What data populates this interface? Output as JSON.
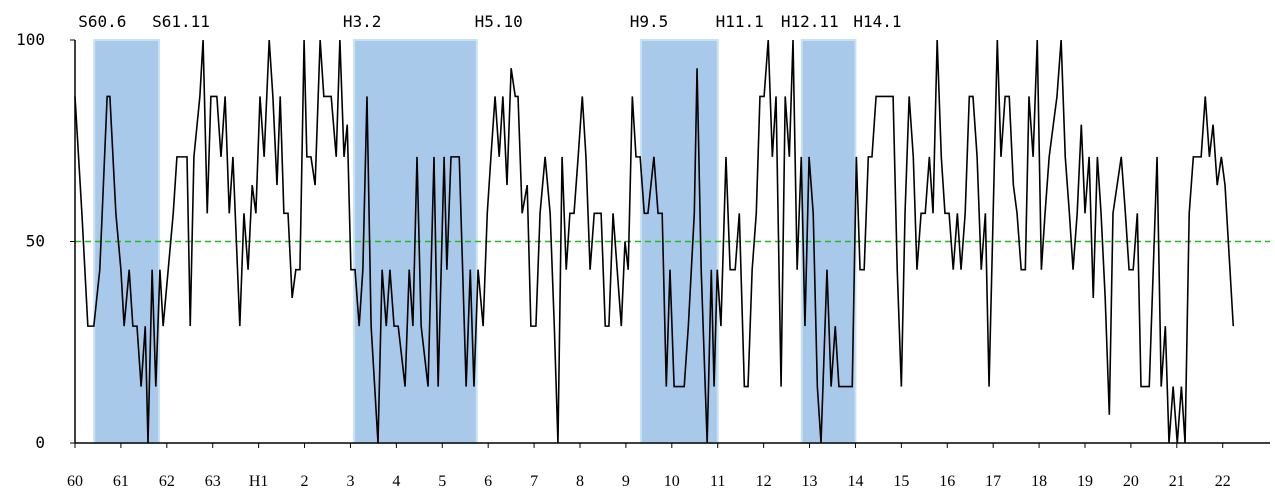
{
  "chart_data": {
    "type": "line",
    "color": "#000000",
    "band_color": "#a9c9ea",
    "reference_line": {
      "value": 50,
      "color": "#22bb22"
    },
    "xlim": [
      60,
      86.03
    ],
    "ylim": [
      0,
      100
    ],
    "yticks": [
      0,
      50,
      100
    ],
    "xticks": [
      60,
      61,
      62,
      63,
      {
        "value": 64,
        "label": "H1"
      },
      {
        "value": 65,
        "label": "2"
      },
      {
        "value": 66,
        "label": "3"
      },
      {
        "value": 67,
        "label": "4"
      },
      {
        "value": 68,
        "label": "5"
      },
      {
        "value": 69,
        "label": "6"
      },
      {
        "value": 70,
        "label": "7"
      },
      {
        "value": 71,
        "label": "8"
      },
      {
        "value": 72,
        "label": "9"
      },
      {
        "value": 73,
        "label": "10"
      },
      {
        "value": 74,
        "label": "11"
      },
      {
        "value": 75,
        "label": "12"
      },
      {
        "value": 76,
        "label": "13"
      },
      {
        "value": 77,
        "label": "14"
      },
      {
        "value": 78,
        "label": "15"
      },
      {
        "value": 79,
        "label": "16"
      },
      {
        "value": 80,
        "label": "17"
      },
      {
        "value": 81,
        "label": "18"
      },
      {
        "value": 82,
        "label": "19"
      },
      {
        "value": 83,
        "label": "20"
      },
      {
        "value": 84,
        "label": "21"
      },
      {
        "value": 85,
        "label": "22"
      }
    ],
    "bands": [
      {
        "start": 60.42,
        "end": 61.83,
        "start_label": "S60.6",
        "end_label": "S61.11"
      },
      {
        "start": 66.08,
        "end": 68.75,
        "start_label": "H3.2",
        "end_label": "H5.10"
      },
      {
        "start": 72.33,
        "end": 74.0,
        "start_label": "H9.5",
        "end_label": "H11.1"
      },
      {
        "start": 75.83,
        "end": 77.0,
        "start_label": "H12.11",
        "end_label": "H14.1"
      }
    ],
    "x": [
      60.0,
      60.15,
      60.28,
      60.41,
      60.54,
      60.7,
      60.76,
      60.89,
      61.0,
      61.07,
      61.18,
      61.26,
      61.35,
      61.44,
      61.53,
      61.59,
      61.68,
      61.76,
      61.85,
      61.92,
      62.03,
      62.14,
      62.22,
      62.44,
      62.51,
      62.59,
      62.72,
      62.79,
      62.88,
      62.96,
      63.09,
      63.18,
      63.27,
      63.36,
      63.44,
      63.59,
      63.68,
      63.77,
      63.86,
      63.94,
      64.03,
      64.12,
      64.23,
      64.31,
      64.4,
      64.47,
      64.55,
      64.64,
      64.73,
      64.81,
      64.9,
      64.99,
      65.05,
      65.14,
      65.23,
      65.34,
      65.42,
      65.58,
      65.69,
      65.77,
      65.86,
      65.93,
      66.01,
      66.1,
      66.19,
      66.27,
      66.36,
      66.45,
      66.6,
      66.69,
      66.78,
      66.86,
      66.95,
      67.04,
      67.19,
      67.28,
      67.36,
      67.45,
      67.54,
      67.69,
      67.82,
      67.91,
      68.04,
      68.1,
      68.19,
      68.37,
      68.52,
      68.61,
      68.69,
      68.78,
      68.89,
      68.98,
      69.06,
      69.15,
      69.24,
      69.32,
      69.41,
      69.5,
      69.59,
      69.65,
      69.74,
      69.85,
      69.93,
      70.04,
      70.13,
      70.24,
      70.35,
      70.44,
      70.52,
      70.61,
      70.7,
      70.78,
      70.87,
      70.96,
      71.05,
      71.13,
      71.22,
      71.31,
      71.46,
      71.55,
      71.63,
      71.72,
      71.81,
      71.9,
      71.98,
      72.05,
      72.14,
      72.22,
      72.31,
      72.4,
      72.48,
      72.61,
      72.7,
      72.79,
      72.88,
      72.96,
      73.05,
      73.27,
      73.36,
      73.49,
      73.55,
      73.64,
      73.77,
      73.86,
      73.92,
      73.99,
      74.07,
      74.18,
      74.27,
      74.38,
      74.47,
      74.58,
      74.66,
      74.75,
      74.84,
      74.92,
      75.01,
      75.1,
      75.19,
      75.27,
      75.38,
      75.47,
      75.56,
      75.64,
      75.73,
      75.82,
      75.9,
      75.99,
      76.08,
      76.17,
      76.25,
      76.38,
      76.47,
      76.56,
      76.64,
      76.93,
      77.02,
      77.1,
      77.19,
      77.28,
      77.36,
      77.45,
      77.76,
      77.82,
      77.91,
      78.0,
      78.08,
      78.17,
      78.26,
      78.34,
      78.43,
      78.52,
      78.61,
      78.69,
      78.78,
      78.87,
      78.95,
      79.04,
      79.13,
      79.22,
      79.3,
      79.39,
      79.48,
      79.56,
      79.65,
      79.74,
      79.83,
      79.91,
      80.0,
      80.09,
      80.17,
      80.26,
      80.35,
      80.44,
      80.52,
      80.61,
      80.7,
      80.78,
      80.87,
      80.96,
      81.05,
      81.13,
      81.22,
      81.31,
      81.39,
      81.48,
      81.57,
      81.66,
      81.74,
      81.83,
      81.92,
      82.0,
      82.09,
      82.18,
      82.27,
      82.35,
      82.44,
      82.53,
      82.61,
      82.7,
      82.79,
      82.88,
      82.96,
      83.05,
      83.14,
      83.22,
      83.4,
      83.57,
      83.66,
      83.75,
      83.83,
      83.92,
      84.01,
      84.1,
      84.18,
      84.27,
      84.36,
      84.53,
      84.62,
      84.71,
      84.79,
      84.88,
      84.97,
      85.05,
      85.23
    ],
    "values": [
      86,
      57,
      29,
      29,
      43,
      86,
      86,
      57,
      43,
      29,
      43,
      29,
      29,
      14,
      29,
      0,
      43,
      14,
      43,
      29,
      43,
      57,
      71,
      71,
      29,
      71,
      86,
      100,
      57,
      86,
      86,
      71,
      86,
      57,
      71,
      29,
      57,
      43,
      64,
      57,
      86,
      71,
      100,
      86,
      64,
      86,
      57,
      57,
      36,
      43,
      43,
      100,
      71,
      71,
      64,
      100,
      86,
      86,
      71,
      100,
      71,
      79,
      43,
      43,
      29,
      43,
      86,
      29,
      0,
      43,
      29,
      43,
      29,
      29,
      14,
      43,
      29,
      71,
      29,
      14,
      71,
      14,
      71,
      43,
      71,
      71,
      14,
      43,
      14,
      43,
      29,
      57,
      71,
      86,
      71,
      86,
      64,
      93,
      86,
      86,
      57,
      64,
      29,
      29,
      57,
      71,
      57,
      29,
      0,
      71,
      43,
      57,
      57,
      71,
      86,
      71,
      43,
      57,
      57,
      29,
      29,
      57,
      43,
      29,
      50,
      43,
      86,
      71,
      71,
      57,
      57,
      71,
      57,
      57,
      14,
      43,
      14,
      14,
      29,
      57,
      93,
      43,
      0,
      43,
      14,
      43,
      29,
      71,
      43,
      43,
      57,
      14,
      14,
      43,
      57,
      86,
      86,
      100,
      71,
      86,
      14,
      86,
      71,
      100,
      43,
      71,
      29,
      71,
      57,
      14,
      0,
      43,
      14,
      29,
      14,
      14,
      71,
      43,
      43,
      71,
      71,
      86,
      86,
      86,
      43,
      14,
      57,
      86,
      71,
      43,
      57,
      57,
      71,
      57,
      100,
      71,
      57,
      57,
      43,
      57,
      43,
      57,
      86,
      86,
      71,
      43,
      57,
      14,
      57,
      100,
      71,
      86,
      86,
      64,
      57,
      43,
      43,
      86,
      71,
      100,
      43,
      57,
      71,
      79,
      86,
      100,
      71,
      57,
      43,
      57,
      79,
      57,
      71,
      36,
      71,
      57,
      36,
      7,
      57,
      64,
      71,
      57,
      43,
      43,
      57,
      14,
      14,
      71,
      14,
      29,
      0,
      14,
      0,
      14,
      0,
      57,
      71,
      71,
      86,
      71,
      79,
      64,
      71,
      64,
      29
    ]
  }
}
